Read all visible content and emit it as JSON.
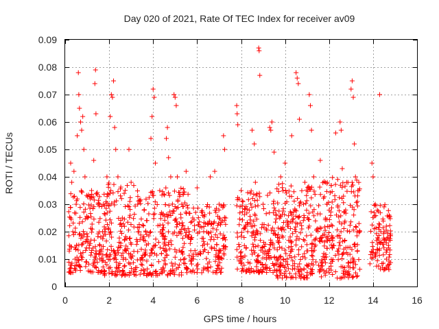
{
  "chart_data": {
    "type": "scatter",
    "title": "Day 020 of 2021, Rate Of TEC Index for receiver av09",
    "xlabel": "GPS time / hours",
    "ylabel": "ROTI / TECUs",
    "xlim": [
      0,
      16
    ],
    "ylim": [
      0,
      0.09
    ],
    "x_ticks": [
      0,
      2,
      4,
      6,
      8,
      10,
      12,
      14,
      16
    ],
    "y_ticks": [
      0,
      0.01,
      0.02,
      0.03,
      0.04,
      0.05,
      0.06,
      0.07,
      0.08,
      0.09
    ],
    "x_tick_labels": [
      "0",
      "2",
      "4",
      "6",
      "8",
      "10",
      "12",
      "14",
      "16"
    ],
    "y_tick_labels": [
      "0",
      "0.01",
      "0.02",
      "0.03",
      "0.04",
      "0.05",
      "0.06",
      "0.07",
      "0.08",
      "0.09"
    ],
    "grid": true,
    "marker": "+",
    "series": [
      {
        "name": "ROTI",
        "color": "#ff0000",
        "points": [
          [
            0.2,
            0.015
          ],
          [
            0.25,
            0.045
          ],
          [
            0.3,
            0.038
          ],
          [
            0.35,
            0.02
          ],
          [
            0.4,
            0.042
          ],
          [
            0.45,
            0.01
          ],
          [
            0.5,
            0.03
          ],
          [
            0.55,
            0.055
          ],
          [
            0.6,
            0.078
          ],
          [
            0.62,
            0.07
          ],
          [
            0.65,
            0.065
          ],
          [
            0.7,
            0.06
          ],
          [
            0.75,
            0.057
          ],
          [
            0.8,
            0.062
          ],
          [
            0.85,
            0.05
          ],
          [
            0.9,
            0.04
          ],
          [
            1.0,
            0.025
          ],
          [
            1.1,
            0.015
          ],
          [
            1.2,
            0.035
          ],
          [
            1.3,
            0.046
          ],
          [
            1.35,
            0.074
          ],
          [
            1.38,
            0.079
          ],
          [
            1.4,
            0.063
          ],
          [
            1.5,
            0.03
          ],
          [
            1.7,
            0.02
          ],
          [
            1.9,
            0.04
          ],
          [
            2.05,
            0.062
          ],
          [
            2.1,
            0.07
          ],
          [
            2.15,
            0.069
          ],
          [
            2.2,
            0.075
          ],
          [
            2.25,
            0.058
          ],
          [
            2.3,
            0.05
          ],
          [
            2.4,
            0.04
          ],
          [
            2.6,
            0.025
          ],
          [
            2.9,
            0.05
          ],
          [
            3.0,
            0.038
          ],
          [
            3.3,
            0.03
          ],
          [
            3.6,
            0.028
          ],
          [
            3.9,
            0.054
          ],
          [
            3.95,
            0.062
          ],
          [
            4.0,
            0.072
          ],
          [
            4.05,
            0.069
          ],
          [
            4.1,
            0.045
          ],
          [
            4.3,
            0.035
          ],
          [
            4.6,
            0.054
          ],
          [
            4.65,
            0.058
          ],
          [
            4.7,
            0.047
          ],
          [
            4.8,
            0.04
          ],
          [
            4.95,
            0.07
          ],
          [
            5.0,
            0.069
          ],
          [
            5.05,
            0.066
          ],
          [
            5.1,
            0.04
          ],
          [
            5.3,
            0.03
          ],
          [
            5.5,
            0.042
          ],
          [
            5.8,
            0.025
          ],
          [
            6.0,
            0.036
          ],
          [
            6.3,
            0.02
          ],
          [
            6.6,
            0.04
          ],
          [
            6.8,
            0.042
          ],
          [
            7.0,
            0.03
          ],
          [
            7.2,
            0.055
          ],
          [
            7.25,
            0.05
          ],
          [
            7.3,
            0.025
          ],
          [
            7.8,
            0.066
          ],
          [
            7.82,
            0.063
          ],
          [
            7.85,
            0.059
          ],
          [
            8.0,
            0.035
          ],
          [
            8.3,
            0.02
          ],
          [
            8.5,
            0.057
          ],
          [
            8.6,
            0.052
          ],
          [
            8.65,
            0.038
          ],
          [
            8.8,
            0.087
          ],
          [
            8.82,
            0.086
          ],
          [
            8.85,
            0.077
          ],
          [
            9.0,
            0.03
          ],
          [
            9.3,
            0.058
          ],
          [
            9.35,
            0.057
          ],
          [
            9.4,
            0.06
          ],
          [
            9.5,
            0.049
          ],
          [
            9.8,
            0.04
          ],
          [
            10.0,
            0.045
          ],
          [
            10.3,
            0.055
          ],
          [
            10.5,
            0.078
          ],
          [
            10.55,
            0.076
          ],
          [
            10.6,
            0.074
          ],
          [
            10.65,
            0.061
          ],
          [
            10.9,
            0.038
          ],
          [
            11.1,
            0.07
          ],
          [
            11.15,
            0.066
          ],
          [
            11.2,
            0.057
          ],
          [
            11.3,
            0.04
          ],
          [
            11.6,
            0.046
          ],
          [
            11.9,
            0.03
          ],
          [
            12.3,
            0.056
          ],
          [
            12.5,
            0.06
          ],
          [
            12.55,
            0.057
          ],
          [
            12.6,
            0.043
          ],
          [
            12.8,
            0.038
          ],
          [
            13.0,
            0.072
          ],
          [
            13.05,
            0.075
          ],
          [
            13.1,
            0.069
          ],
          [
            13.15,
            0.052
          ],
          [
            13.2,
            0.04
          ],
          [
            13.4,
            0.02
          ],
          [
            13.95,
            0.045
          ],
          [
            14.0,
            0.04
          ],
          [
            14.1,
            0.03
          ],
          [
            14.3,
            0.07
          ],
          [
            14.5,
            0.02
          ],
          [
            14.7,
            0.015
          ]
        ]
      }
    ],
    "dense_bands": [
      {
        "x_start": 0.15,
        "x_end": 1.6,
        "y_min": 0.005,
        "y_max": 0.035,
        "count": 170
      },
      {
        "x_start": 1.6,
        "x_end": 3.3,
        "y_min": 0.004,
        "y_max": 0.038,
        "count": 200
      },
      {
        "x_start": 3.3,
        "x_end": 5.6,
        "y_min": 0.004,
        "y_max": 0.036,
        "count": 260
      },
      {
        "x_start": 5.6,
        "x_end": 7.3,
        "y_min": 0.005,
        "y_max": 0.03,
        "count": 170
      },
      {
        "x_start": 7.8,
        "x_end": 9.6,
        "y_min": 0.005,
        "y_max": 0.035,
        "count": 210
      },
      {
        "x_start": 9.6,
        "x_end": 11.4,
        "y_min": 0.003,
        "y_max": 0.038,
        "count": 240
      },
      {
        "x_start": 11.4,
        "x_end": 13.4,
        "y_min": 0.003,
        "y_max": 0.04,
        "count": 240
      },
      {
        "x_start": 13.85,
        "x_end": 14.8,
        "y_min": 0.006,
        "y_max": 0.03,
        "count": 110
      }
    ]
  }
}
